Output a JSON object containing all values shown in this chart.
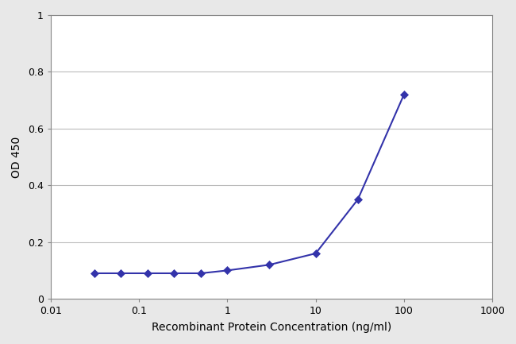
{
  "x_values": [
    0.03125,
    0.0625,
    0.125,
    0.25,
    0.5,
    1.0,
    3.0,
    10.0,
    30.0,
    100.0
  ],
  "y_values": [
    0.09,
    0.09,
    0.09,
    0.09,
    0.09,
    0.1,
    0.12,
    0.16,
    0.35,
    0.72
  ],
  "line_color": "#3333aa",
  "marker": "D",
  "marker_size": 5,
  "marker_facecolor": "#3333aa",
  "xlabel": "Recombinant Protein Concentration (ng/ml)",
  "ylabel": "OD 450",
  "xlim": [
    0.01,
    1000
  ],
  "ylim": [
    0,
    1
  ],
  "yticks": [
    0,
    0.2,
    0.4,
    0.6,
    0.8,
    1
  ],
  "xtick_values": [
    0.01,
    0.1,
    1,
    10,
    100,
    1000
  ],
  "xtick_labels": [
    "0.01",
    "0.1",
    "1",
    "10",
    "100",
    "1000"
  ],
  "grid_color": "#bbbbbb",
  "plot_bg_color": "#ffffff",
  "fig_bg_color": "#e8e8e8",
  "line_width": 1.5,
  "xlabel_fontsize": 10,
  "ylabel_fontsize": 10,
  "tick_fontsize": 9,
  "spine_color": "#888888"
}
